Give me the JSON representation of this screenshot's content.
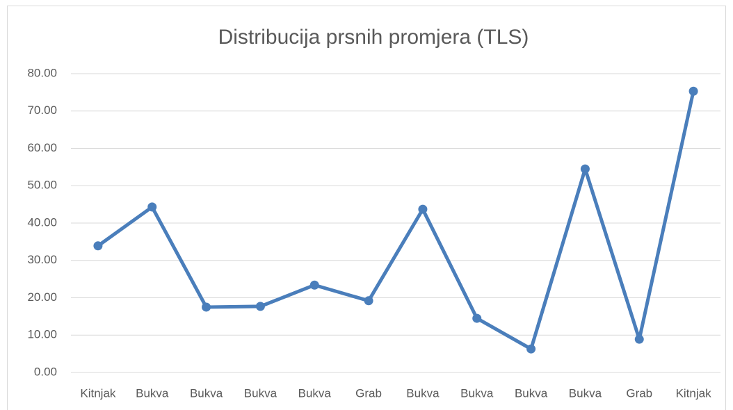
{
  "chart_data": {
    "type": "line",
    "title": "Distribucija prsnih promjera (TLS)",
    "categories": [
      "Kitnjak",
      "Bukva",
      "Bukva",
      "Bukva",
      "Bukva",
      "Grab",
      "Bukva",
      "Bukva",
      "Bukva",
      "Bukva",
      "Grab",
      "Kitnjak"
    ],
    "values": [
      33.9,
      44.3,
      17.5,
      17.7,
      23.4,
      19.2,
      43.7,
      14.5,
      6.3,
      54.5,
      8.9,
      75.3
    ],
    "color": "#4a7ebb",
    "ylim": [
      0,
      80
    ],
    "yticks": [
      {
        "value": 0,
        "label": "0.00"
      },
      {
        "value": 10,
        "label": "10.00"
      },
      {
        "value": 20,
        "label": "20.00"
      },
      {
        "value": 30,
        "label": "30.00"
      },
      {
        "value": 40,
        "label": "40.00"
      },
      {
        "value": 50,
        "label": "50.00"
      },
      {
        "value": 60,
        "label": "60.00"
      },
      {
        "value": 70,
        "label": "70.00"
      },
      {
        "value": 80,
        "label": "80.00"
      }
    ],
    "grid": true
  }
}
